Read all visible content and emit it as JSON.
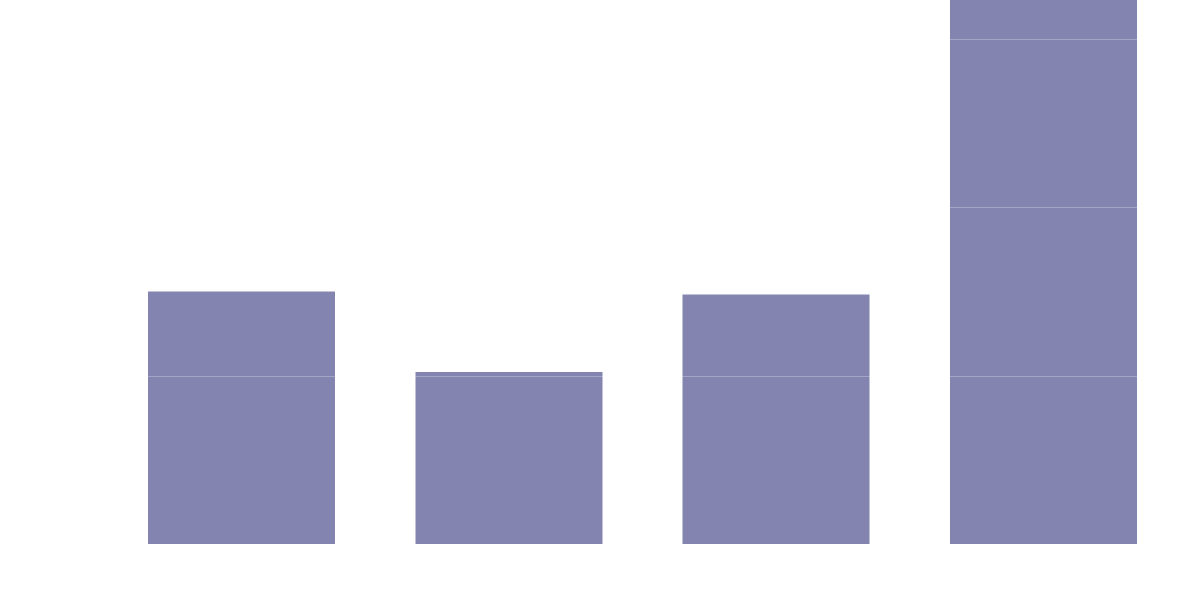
{
  "chart_data": {
    "type": "bar",
    "title": "",
    "xlabel": "",
    "ylabel": "",
    "categories": [
      "",
      "",
      "",
      ""
    ],
    "values": [
      1.5,
      1.02,
      1.48,
      3.23
    ],
    "ylim": [
      0,
      3.23
    ],
    "gridlines": [
      1,
      2,
      3
    ],
    "grid": true,
    "legend": "none"
  },
  "colors": {
    "bar": "#8385b0",
    "grid": "#a3a5c6",
    "background": "#ffffff"
  }
}
